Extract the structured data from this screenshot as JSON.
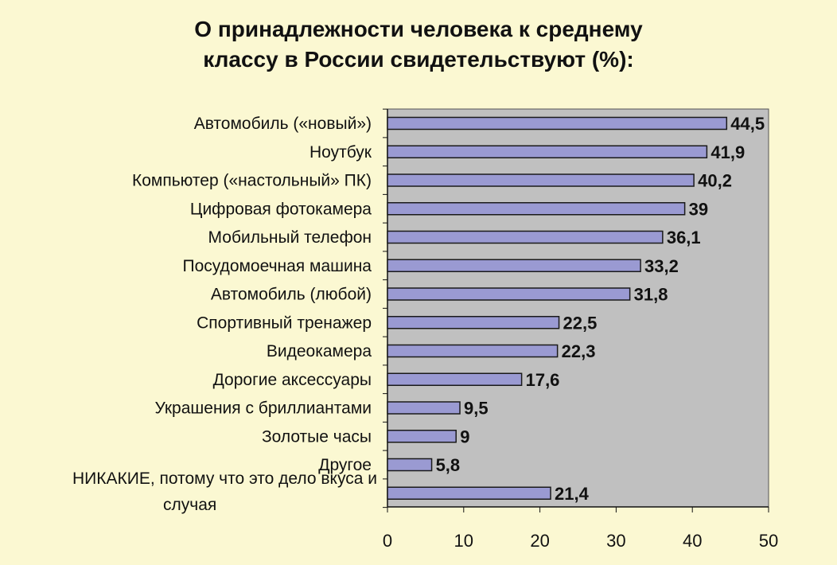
{
  "chart_data": {
    "type": "bar",
    "orientation": "horizontal",
    "title_line1": "О принадлежности человека к среднему",
    "title_line2": "классу в России свидетельствуют (%):",
    "categories": [
      "Автомобиль («новый»)",
      "Ноутбук",
      "Компьютер («настольный» ПК)",
      "Цифровая фотокамера",
      "Мобильный телефон",
      "Посудомоечная машина",
      "Автомобиль (любой)",
      "Спортивный тренажер",
      "Видеокамера",
      "Дорогие аксессуары",
      "Украшения с бриллиантами",
      "Золотые часы",
      "Другое",
      "НИКАКИЕ, потому что это дело вкуса и случая"
    ],
    "category_label_lines": [
      [
        "Автомобиль («новый»)"
      ],
      [
        "Ноутбук"
      ],
      [
        "Компьютер («настольный» ПК)"
      ],
      [
        "Цифровая фотокамера"
      ],
      [
        "Мобильный телефон"
      ],
      [
        "Посудомоечная машина"
      ],
      [
        "Автомобиль (любой)"
      ],
      [
        "Спортивный тренажер"
      ],
      [
        "Видеокамера"
      ],
      [
        "Дорогие аксессуары"
      ],
      [
        "Украшения с бриллиантами"
      ],
      [
        "Золотые часы"
      ],
      [
        "Другое"
      ],
      [
        "НИКАКИЕ, потому что это дело вкуса и",
        "случая"
      ]
    ],
    "values": [
      44.5,
      41.9,
      40.2,
      39,
      36.1,
      33.2,
      31.8,
      22.5,
      22.3,
      17.6,
      9.5,
      9,
      5.8,
      21.4
    ],
    "value_labels": [
      "44,5",
      "41,9",
      "40,2",
      "39",
      "36,1",
      "33,2",
      "31,8",
      "22,5",
      "22,3",
      "17,6",
      "9,5",
      "9",
      "5,8",
      "21,4"
    ],
    "xlim": [
      0,
      50
    ],
    "xticks": [
      0,
      10,
      20,
      30,
      40,
      50
    ],
    "xtick_labels": [
      "0",
      "10",
      "20",
      "30",
      "40",
      "50"
    ],
    "grid": false,
    "legend": "none",
    "colors": {
      "page_background": "#fbf8d2",
      "plot_background": "#c0c0c0",
      "bar_fill": "#9a9ad2",
      "bar_stroke": "#1a1a1a"
    }
  }
}
